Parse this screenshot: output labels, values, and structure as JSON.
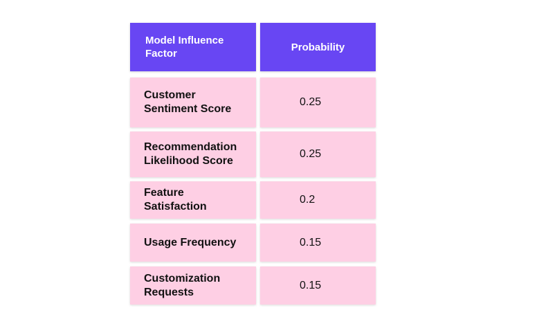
{
  "chart_data": {
    "type": "table",
    "columns": [
      "Model Influence Factor",
      "Probability"
    ],
    "rows": [
      {
        "factor": "Customer Sentiment Score",
        "probability": "0.25"
      },
      {
        "factor": "Recommendation Likelihood Score",
        "probability": "0.25"
      },
      {
        "factor": "Feature Satisfaction",
        "probability": "0.2"
      },
      {
        "factor": "Usage Frequency",
        "probability": "0.15"
      },
      {
        "factor": "Customization Requests",
        "probability": "0.15"
      }
    ],
    "colors": {
      "header_bg": "#6846f3",
      "row_bg": "#fecfe4"
    }
  }
}
